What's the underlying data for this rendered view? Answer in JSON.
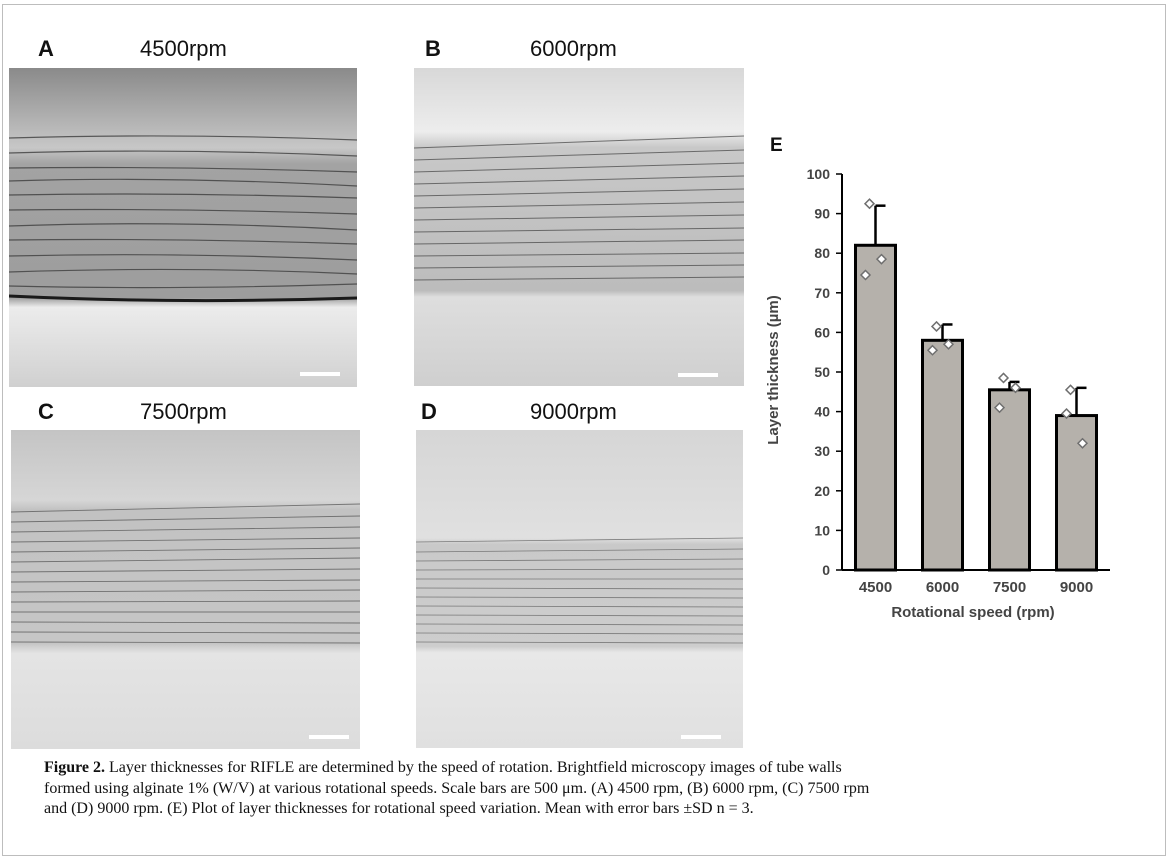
{
  "panels": [
    {
      "letter": "A",
      "title": "4500rpm"
    },
    {
      "letter": "B",
      "title": "6000rpm"
    },
    {
      "letter": "C",
      "title": "7500rpm"
    },
    {
      "letter": "D",
      "title": "9000rpm"
    }
  ],
  "chart_data": {
    "type": "bar",
    "panel_letter": "E",
    "categories": [
      "4500",
      "6000",
      "7500",
      "9000"
    ],
    "values": [
      82,
      58,
      45.5,
      39
    ],
    "error_sd": [
      10,
      4,
      2,
      7
    ],
    "replicates": [
      [
        92.5,
        74.5,
        78.5
      ],
      [
        61.5,
        55.5,
        57.0
      ],
      [
        48.5,
        41.0,
        46.0
      ],
      [
        45.5,
        39.5,
        32.0
      ]
    ],
    "xlabel": "Rotational speed (rpm)",
    "ylabel": "Layer thickness (µm)",
    "ylim": [
      0,
      100
    ],
    "yticks": [
      0,
      10,
      20,
      30,
      40,
      50,
      60,
      70,
      80,
      90,
      100
    ],
    "grid": false,
    "colors": {
      "bar": "#b5b1ab",
      "edge": "#000000",
      "marker_fill": "#ffffff",
      "marker_edge": "#6f6f6f"
    }
  },
  "caption": {
    "label": "Figure 2.",
    "lines": [
      "Layer thicknesses for RIFLE are determined by the speed of rotation. Brightfield microscopy images of tube walls",
      "formed using alginate 1% (W/V) at various rotational speeds. Scale bars are 500 μm. (A) 4500 rpm, (B) 6000 rpm, (C) 7500 rpm",
      "and (D) 9000 rpm. (E) Plot of layer thicknesses for rotational speed variation. Mean with error bars ±SD n = 3."
    ]
  }
}
